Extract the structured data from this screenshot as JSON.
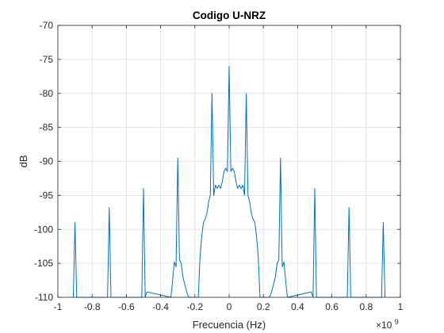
{
  "chart_data": {
    "type": "line",
    "title": "Codigo U-NRZ",
    "xlabel": "Frecuencia (Hz)",
    "ylabel": "dB",
    "x_exponent_label": "×10",
    "x_exponent_power": "9",
    "xlim": [
      -1,
      1
    ],
    "ylim": [
      -110,
      -70
    ],
    "xticks": [
      "-1",
      "-0.8",
      "-0.6",
      "-0.4",
      "-0.2",
      "0",
      "0.2",
      "0.4",
      "0.6",
      "0.8",
      "1"
    ],
    "yticks": [
      "-70",
      "-75",
      "-80",
      "-85",
      "-90",
      "-95",
      "-100",
      "-105",
      "-110"
    ],
    "xtick_values": [
      -1,
      -0.8,
      -0.6,
      -0.4,
      -0.2,
      0,
      0.2,
      0.4,
      0.6,
      0.8,
      1
    ],
    "ytick_values": [
      -70,
      -75,
      -80,
      -85,
      -90,
      -95,
      -100,
      -105,
      -110
    ],
    "grid": true,
    "series": [
      {
        "color": "#0072bd",
        "x": [
          -0.91,
          -0.9,
          -0.89,
          -0.71,
          -0.7,
          -0.69,
          -0.51,
          -0.5,
          -0.49,
          -0.48,
          -0.34,
          -0.33,
          -0.32,
          -0.31,
          -0.3,
          -0.29,
          -0.28,
          -0.27,
          -0.26,
          -0.25,
          -0.24,
          -0.23,
          -0.18,
          -0.17,
          -0.16,
          -0.15,
          -0.14,
          -0.13,
          -0.12,
          -0.11,
          -0.1,
          -0.09,
          -0.08,
          -0.07,
          -0.06,
          -0.05,
          -0.04,
          -0.03,
          -0.02,
          -0.01,
          0,
          0.01,
          0.02,
          0.03,
          0.04,
          0.05,
          0.06,
          0.07,
          0.08,
          0.09,
          0.1,
          0.11,
          0.12,
          0.13,
          0.14,
          0.15,
          0.16,
          0.17,
          0.18,
          0.23,
          0.24,
          0.25,
          0.26,
          0.27,
          0.28,
          0.29,
          0.3,
          0.31,
          0.32,
          0.33,
          0.34,
          0.48,
          0.49,
          0.5,
          0.51,
          0.69,
          0.7,
          0.71,
          0.89,
          0.9,
          0.91
        ],
        "y": [
          -110,
          -99,
          -110,
          -110,
          -96.8,
          -110,
          -110,
          -94,
          -110,
          -109.2,
          -110,
          -107.5,
          -104.8,
          -105.5,
          -89.5,
          -104.5,
          -105,
          -107,
          -108,
          -109,
          -109.8,
          -110,
          -110,
          -104,
          -101,
          -99,
          -98.5,
          -97.7,
          -96,
          -95,
          -80,
          -95,
          -93.5,
          -94,
          -93.5,
          -94,
          -93,
          -91.5,
          -91,
          -91.5,
          -76,
          -91.5,
          -91,
          -91.5,
          -93,
          -94,
          -93.5,
          -94,
          -93.5,
          -95,
          -80,
          -95,
          -96,
          -97.7,
          -98.5,
          -99,
          -101,
          -104,
          -110,
          -110,
          -109.8,
          -109,
          -108,
          -107,
          -105,
          -104.5,
          -89.5,
          -105.5,
          -104.8,
          -107.5,
          -110,
          -109.2,
          -110,
          -94,
          -110,
          -110,
          -96.8,
          -110,
          -110,
          -99,
          -110
        ]
      }
    ]
  }
}
